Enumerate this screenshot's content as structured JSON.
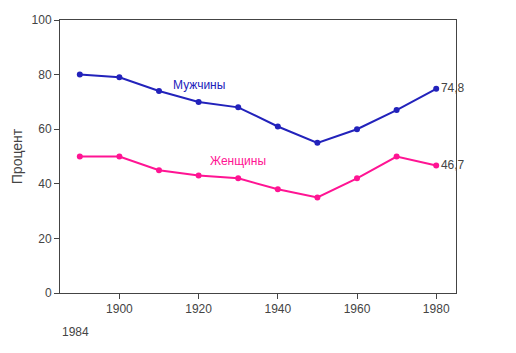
{
  "chart_data": {
    "type": "line",
    "ylabel": "Процент",
    "annotations": [
      "1984"
    ],
    "x": [
      1890,
      1900,
      1910,
      1920,
      1930,
      1940,
      1950,
      1960,
      1970,
      1980
    ],
    "series": [
      {
        "name": "Мужчины",
        "color": "#2222BB",
        "marker": "circle",
        "line_style": "solid",
        "values": [
          80,
          79,
          74,
          70,
          68,
          61,
          55,
          60,
          67,
          74.8
        ],
        "value_labels": [
          null,
          null,
          null,
          null,
          null,
          null,
          null,
          null,
          null,
          "74,8"
        ]
      },
      {
        "name": "Женщины",
        "color": "#FF1493",
        "marker": "circle",
        "line_style": "solid",
        "values": [
          50,
          50,
          45,
          43,
          42,
          38,
          35,
          42,
          50,
          46.7
        ],
        "value_labels": [
          null,
          null,
          null,
          null,
          null,
          null,
          null,
          null,
          null,
          "46,7"
        ]
      }
    ],
    "xlim": [
      1885,
      1985
    ],
    "xticks": [
      1900,
      1920,
      1940,
      1960,
      1980
    ],
    "ylim": [
      0,
      100
    ],
    "yticks": [
      0,
      20,
      40,
      60,
      80,
      100
    ],
    "grid": false
  }
}
